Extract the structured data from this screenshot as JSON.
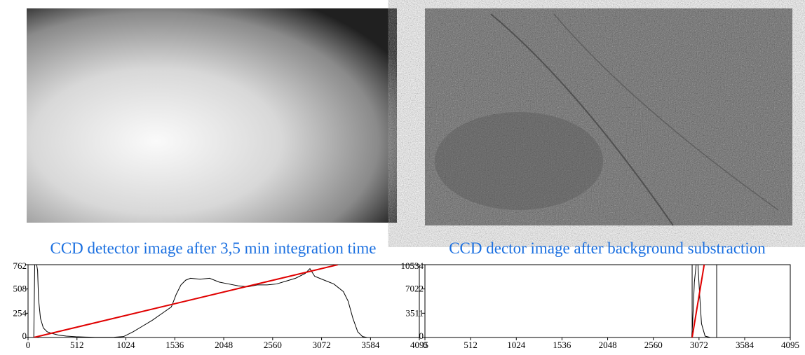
{
  "chart_data": [
    {
      "type": "line",
      "title": "CCD detector image after 3,5 min integration time",
      "xlim": [
        0,
        4095
      ],
      "ylim": [
        0,
        762
      ],
      "xticks": [
        0,
        512,
        1024,
        1536,
        2048,
        2560,
        3072,
        3584,
        4095
      ],
      "yticks": [
        0,
        254,
        508,
        762
      ],
      "series": [
        {
          "color": "#000000",
          "x": [
            60,
            70,
            80,
            90,
            100,
            110,
            130,
            160,
            200,
            260,
            320,
            400,
            500,
            600,
            700,
            800,
            900,
            1000,
            1100,
            1200,
            1300,
            1400,
            1500,
            1550,
            1600,
            1650,
            1700,
            1800,
            1900,
            2000,
            2100,
            2200,
            2300,
            2400,
            2500,
            2600,
            2700,
            2800,
            2900,
            2950,
            3000,
            3100,
            3200,
            3300,
            3350,
            3400,
            3450,
            3500,
            3550
          ],
          "values": [
            0,
            762,
            762,
            762,
            700,
            400,
            200,
            100,
            60,
            40,
            25,
            15,
            8,
            5,
            2,
            2,
            3,
            10,
            60,
            120,
            180,
            250,
            320,
            450,
            550,
            600,
            620,
            610,
            620,
            580,
            560,
            540,
            530,
            550,
            550,
            560,
            590,
            620,
            670,
            720,
            640,
            600,
            560,
            480,
            380,
            200,
            60,
            10,
            0
          ]
        },
        {
          "color": "#e00000",
          "x": [
            59,
            3243
          ],
          "values": [
            0,
            762
          ]
        }
      ]
    },
    {
      "type": "line",
      "title": "CCD dector image after background substraction",
      "xlim": [
        0,
        4095
      ],
      "ylim": [
        0,
        10534
      ],
      "xticks": [
        0,
        512,
        1024,
        1536,
        2048,
        2560,
        3072,
        3584,
        4095
      ],
      "yticks": [
        0,
        3511,
        7022,
        10534
      ],
      "series": [
        {
          "color": "#000000",
          "x": [
            0,
            2990,
            3000,
            3020,
            3040,
            3060,
            3080,
            3100,
            3140,
            3200,
            4095
          ],
          "values": [
            0,
            0,
            2000,
            8000,
            10534,
            10534,
            6000,
            2000,
            200,
            0,
            0
          ]
        },
        {
          "color": "#000000",
          "x": [
            2995,
            2995
          ],
          "values": [
            0,
            10534
          ]
        },
        {
          "color": "#000000",
          "x": [
            3270,
            3270
          ],
          "values": [
            0,
            10534
          ]
        },
        {
          "color": "#e00000",
          "x": [
            2995,
            3130
          ],
          "values": [
            0,
            10534
          ]
        }
      ]
    }
  ]
}
